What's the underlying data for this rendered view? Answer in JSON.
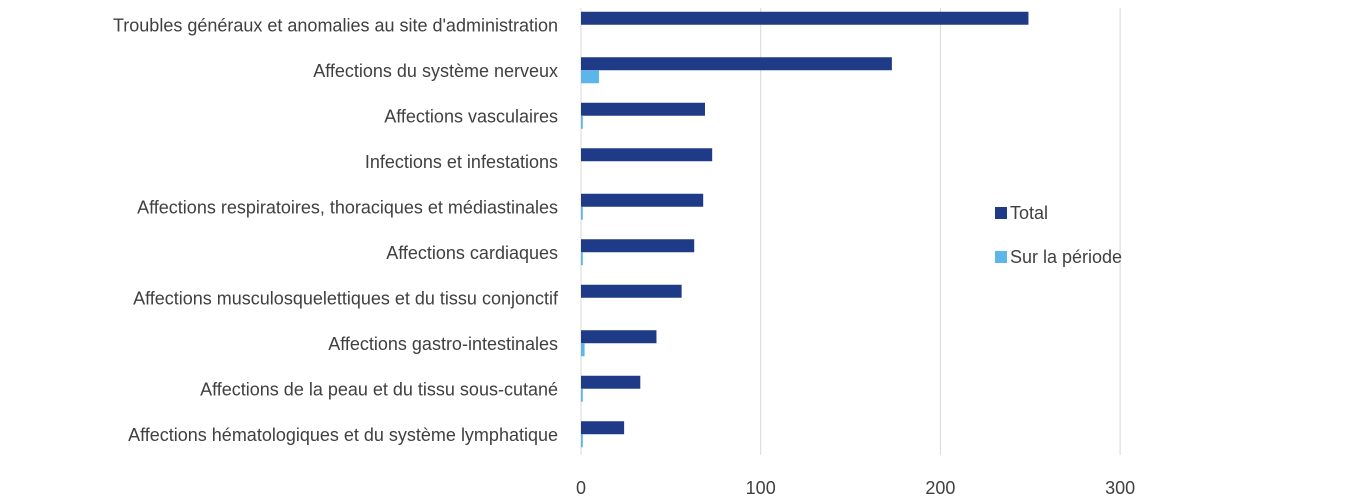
{
  "chart_data": {
    "type": "bar",
    "orientation": "horizontal",
    "categories": [
      "Troubles généraux et anomalies au site d'administration",
      "Affections du système nerveux",
      "Affections vasculaires",
      "Infections et infestations",
      "Affections respiratoires, thoraciques et médiastinales",
      "Affections cardiaques",
      "Affections musculosquelettiques et du tissu conjonctif",
      "Affections gastro-intestinales",
      "Affections de la peau et du tissu sous-cutané",
      "Affections hématologiques et du système lymphatique"
    ],
    "series": [
      {
        "name": "Total",
        "color": "#1f3b87",
        "values": [
          249,
          173,
          69,
          73,
          68,
          63,
          56,
          42,
          33,
          24
        ]
      },
      {
        "name": "Sur la période",
        "color": "#5cb6ea",
        "values": [
          0,
          10,
          1,
          0,
          1,
          1,
          0,
          2,
          1,
          1
        ]
      }
    ],
    "xlim": [
      0,
      350
    ],
    "xticks": [
      0,
      100,
      200,
      300
    ],
    "grid": true,
    "legend": "right"
  }
}
